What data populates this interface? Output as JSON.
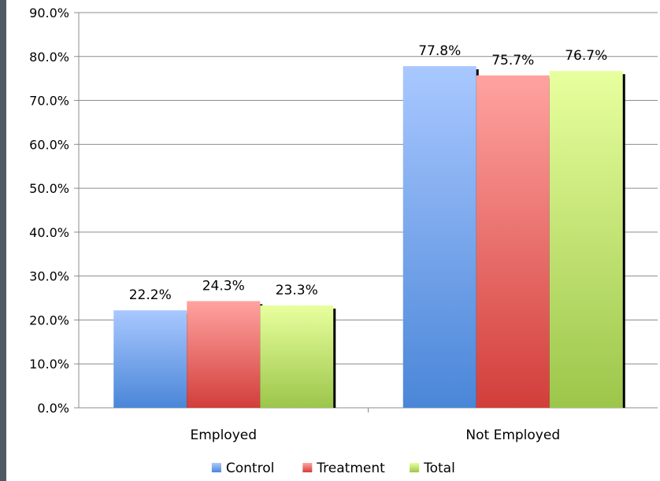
{
  "chart_data": {
    "type": "bar",
    "categories": [
      "Employed",
      "Not Employed"
    ],
    "series": [
      {
        "name": "Control",
        "values": [
          22.2,
          77.8
        ],
        "labels": [
          "22.2%",
          "77.8%"
        ],
        "color_top": "#a9c8ff",
        "color_bottom": "#4a86d8"
      },
      {
        "name": "Treatment",
        "values": [
          24.3,
          75.7
        ],
        "labels": [
          "24.3%",
          "75.7%"
        ],
        "color_top": "#ffa3a0",
        "color_bottom": "#d23e3a"
      },
      {
        "name": "Total",
        "values": [
          23.3,
          76.7
        ],
        "labels": [
          "23.3%",
          "76.7%"
        ],
        "color_top": "#e8ff9e",
        "color_bottom": "#9cc64a"
      }
    ],
    "ylim": [
      0,
      90
    ],
    "yticks": [
      0,
      10,
      20,
      30,
      40,
      50,
      60,
      70,
      80,
      90
    ],
    "ytick_labels": [
      "0.0%",
      "10.0%",
      "20.0%",
      "30.0%",
      "40.0%",
      "50.0%",
      "60.0%",
      "70.0%",
      "80.0%",
      "90.0%"
    ],
    "grid": true,
    "legend_position": "bottom",
    "title": "",
    "xlabel": "",
    "ylabel": ""
  }
}
